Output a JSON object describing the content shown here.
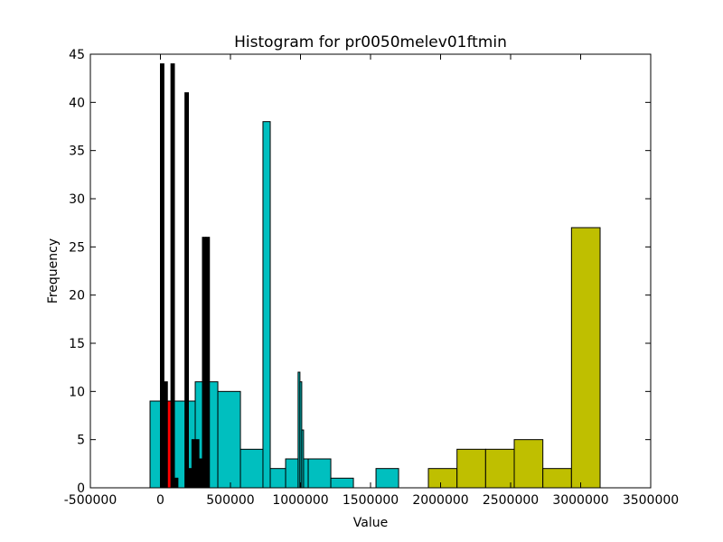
{
  "chart_data": {
    "type": "histogram",
    "title": "Histogram for pr0050melev01ftmin",
    "xlabel": "Value",
    "ylabel": "Frequency",
    "xlim": [
      -500000,
      3500000
    ],
    "ylim": [
      0,
      45
    ],
    "xticks": [
      -500000,
      0,
      500000,
      1000000,
      1500000,
      2000000,
      2500000,
      3000000,
      3500000
    ],
    "yticks": [
      0,
      5,
      10,
      15,
      20,
      25,
      30,
      35,
      40,
      45
    ],
    "series": [
      {
        "color": "#bfbf00",
        "bins": [
          1913000,
          2117300,
          2321600,
          2525900,
          2730200,
          2934500,
          3138800
        ],
        "counts": [
          2,
          4,
          4,
          5,
          2,
          27
        ]
      },
      {
        "color": "#00bfbf",
        "bins": [
          -74000,
          87300,
          248600,
          409900,
          571200,
          732500,
          893800,
          1055100,
          1216400,
          1377700,
          1539000,
          1700300
        ],
        "counts": [
          9,
          9,
          11,
          10,
          4,
          2,
          3,
          3,
          1,
          0,
          2
        ]
      },
      {
        "color": "#00bfbf",
        "bins": [
          732000,
          784000
        ],
        "counts": [
          38
        ]
      },
      {
        "color": "#00bfbf",
        "bins": [
          983000,
          996000,
          1009000,
          1022000
        ],
        "counts": [
          12,
          11,
          6
        ]
      },
      {
        "color": "#ff0000",
        "bins": [
          16000,
          48000,
          80000
        ],
        "counts": [
          9,
          9
        ]
      },
      {
        "color": "#000000",
        "bins": [
          0,
          25000,
          50000,
          75000,
          100000,
          125000,
          150000,
          175000,
          200000,
          225000,
          250000,
          275000,
          300000,
          325000,
          350000
        ],
        "counts": [
          44,
          11,
          0,
          44,
          1,
          0,
          0,
          41,
          2,
          5,
          5,
          3,
          26,
          26
        ]
      }
    ]
  }
}
